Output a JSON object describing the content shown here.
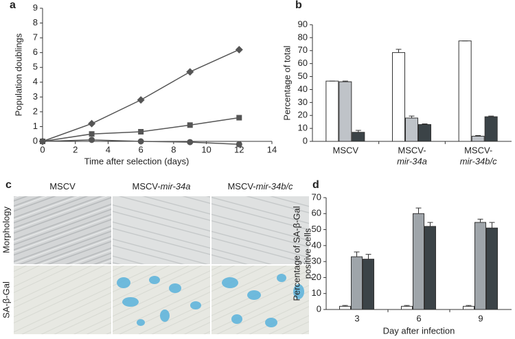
{
  "chart_data": [
    {
      "type": "line",
      "panel": "a",
      "xlabel": "Time after selection (days)",
      "ylabel": "Population doublings",
      "xlim": [
        0,
        14
      ],
      "xticks": [
        0,
        2,
        4,
        6,
        8,
        10,
        12,
        14
      ],
      "ylim": [
        0,
        9
      ],
      "yticks": [
        0,
        1,
        2,
        3,
        4,
        5,
        6,
        7,
        8,
        9
      ],
      "x": [
        0,
        3,
        6,
        9,
        12
      ],
      "series": [
        {
          "marker": "diamond",
          "color": "#555555",
          "values": [
            0,
            1.2,
            2.8,
            4.7,
            6.2
          ]
        },
        {
          "marker": "square",
          "color": "#555555",
          "values": [
            0,
            0.5,
            0.65,
            1.1,
            1.6
          ]
        },
        {
          "marker": "circle",
          "color": "#555555",
          "values": [
            0,
            0.1,
            0,
            -0.05,
            -0.2
          ]
        }
      ]
    },
    {
      "type": "bar",
      "panel": "b",
      "ylabel": "Percentage of total",
      "categories": [
        [
          "MSCV"
        ],
        [
          "MSCV-",
          "mir-34a"
        ],
        [
          "MSCV-",
          "mir-34b/c"
        ]
      ],
      "ylim": [
        0,
        90
      ],
      "yticks": [
        0,
        10,
        20,
        30,
        40,
        50,
        60,
        70,
        80,
        90
      ],
      "series": [
        {
          "color": "#ffffff",
          "values": [
            46.5,
            68.5,
            77.5
          ],
          "errors": [
            0,
            2.5,
            0
          ]
        },
        {
          "color": "#bfc3c8",
          "values": [
            46,
            18,
            4
          ],
          "errors": [
            0.5,
            1.5,
            0.5
          ]
        },
        {
          "color": "#3b4347",
          "values": [
            7,
            13,
            19
          ],
          "errors": [
            1.5,
            0.5,
            0.5
          ]
        }
      ]
    },
    {
      "type": "bar",
      "panel": "d",
      "xlabel": "Day after infection",
      "ylabel": [
        "Percentage of SA-β-Gal",
        "positive cells"
      ],
      "categories": [
        [
          "3"
        ],
        [
          "6"
        ],
        [
          "9"
        ]
      ],
      "ylim": [
        0,
        70
      ],
      "yticks": [
        0,
        10,
        20,
        30,
        40,
        50,
        60,
        70
      ],
      "series": [
        {
          "color": "#ffffff",
          "values": [
            2,
            2,
            2
          ],
          "errors": [
            0.5,
            0.5,
            0.5
          ]
        },
        {
          "color": "#9fa5aa",
          "values": [
            33,
            60,
            54.5
          ],
          "errors": [
            3,
            3.5,
            2
          ]
        },
        {
          "color": "#3b4347",
          "values": [
            31.5,
            52,
            51
          ],
          "errors": [
            3,
            2.5,
            3.5
          ]
        }
      ]
    }
  ],
  "image_panel": {
    "panel": "c",
    "columns": [
      [
        "MSCV"
      ],
      [
        "MSCV-",
        "mir-34a"
      ],
      [
        "MSCV-",
        "mir-34b/c"
      ]
    ],
    "rows": [
      "Morphology",
      "SA-β-Gal"
    ]
  }
}
